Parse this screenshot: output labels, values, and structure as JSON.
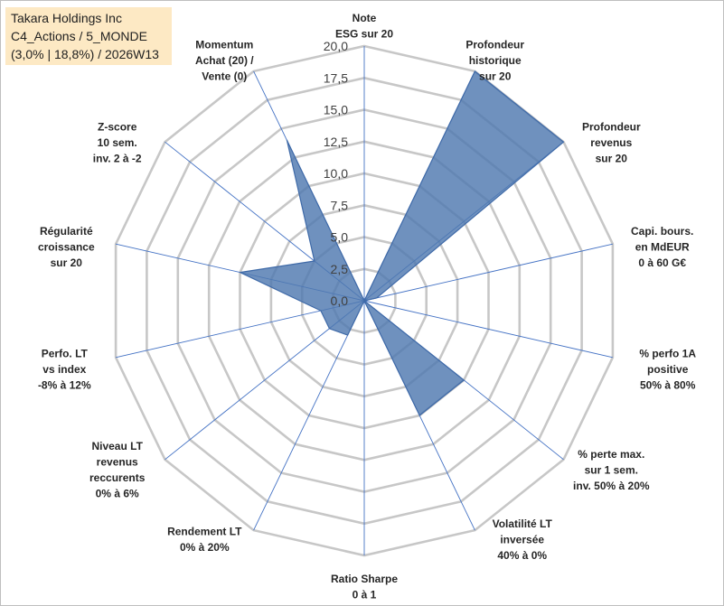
{
  "header": {
    "lines": [
      "Takara Holdings Inc",
      "C4_Actions / 5_MONDE",
      "(3,0% | 18,8%) / 2026W13"
    ]
  },
  "colors": {
    "fill": "#4f79b0",
    "stroke": "#3f6aa8",
    "grid": "#c7c7c7",
    "spoke": "#4472c4",
    "header_bg": "#fde9c4"
  },
  "chart_data": {
    "type": "radar",
    "rmin": 0,
    "rmax": 20,
    "tick_step": 2.5,
    "tick_labels": [
      "0,0",
      "2,5",
      "5,0",
      "7,5",
      "10,0",
      "12,5",
      "15,0",
      "17,5",
      "20,0"
    ],
    "grid": true,
    "axes": [
      {
        "label": [
          "Note",
          "ESG sur 20"
        ],
        "value": 0
      },
      {
        "label": [
          "Profondeur",
          "historique",
          "sur 20"
        ],
        "value": 20
      },
      {
        "label": [
          "Profondeur",
          "revenus",
          "sur 20"
        ],
        "value": 20
      },
      {
        "label": [
          "Capi. bours.",
          "en MdEUR",
          "0 à 60 G€"
        ],
        "value": 1
      },
      {
        "label": [
          "% perfo 1A",
          "positive",
          "50% à 80%"
        ],
        "value": 0
      },
      {
        "label": [
          "% perte max.",
          "sur 1 sem.",
          "inv. 50% à 20%"
        ],
        "value": 10
      },
      {
        "label": [
          "Volatilité LT",
          "inversée",
          "40% à 0%"
        ],
        "value": 10
      },
      {
        "label": [
          "Ratio Sharpe",
          "0 à 1"
        ],
        "value": 0
      },
      {
        "label": [
          "Rendement LT",
          "0% à 20%"
        ],
        "value": 3
      },
      {
        "label": [
          "Niveau LT",
          "revenus",
          "reccurents",
          "0% à 6%"
        ],
        "value": 3.5
      },
      {
        "label": [
          "Perfo. LT",
          "vs index",
          "-8% à 12%"
        ],
        "value": 3.5
      },
      {
        "label": [
          "Régularité",
          "croissance",
          "sur 20"
        ],
        "value": 10
      },
      {
        "label": [
          "Z-score",
          "10 sem.",
          "inv. 2 à -2"
        ],
        "value": 5
      },
      {
        "label": [
          "Momentum",
          "Achat (20) /",
          "Vente (0)"
        ],
        "value": 14
      }
    ]
  }
}
